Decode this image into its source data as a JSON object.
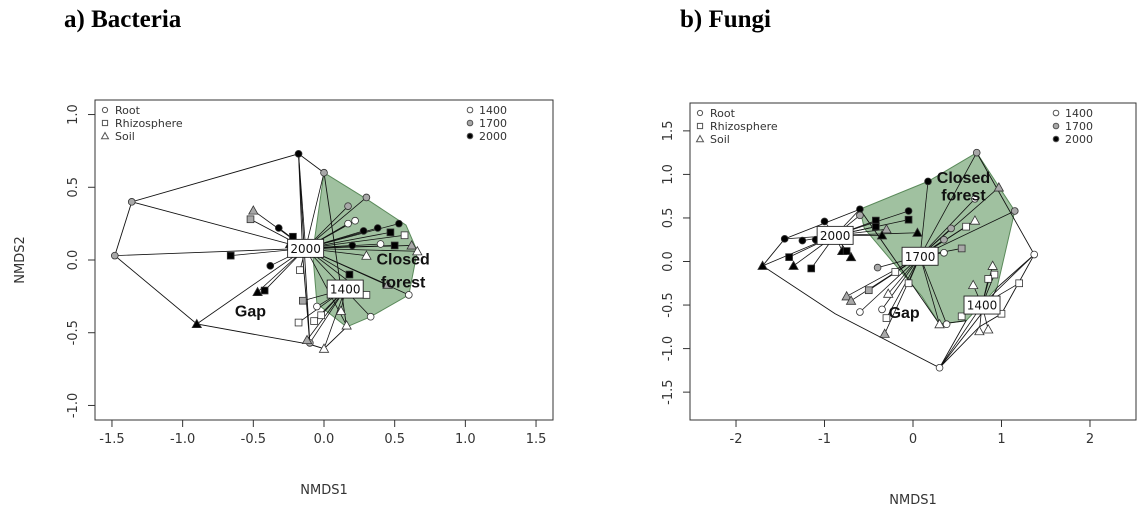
{
  "panels": {
    "a_title": "a)   Bacteria",
    "b_title": "b) Fungi"
  },
  "legend": {
    "shape_entries": [
      "Root",
      "Rhizosphere",
      "Soil"
    ],
    "elevation_entries": [
      "1400",
      "1700",
      "2000"
    ]
  },
  "colors": {
    "hull_fill": "#8fb68f",
    "hull_stroke": "#5a8a5a",
    "elev_1400": "#ffffff",
    "elev_1700": "#a8a8a8",
    "elev_2000": "#000000"
  },
  "chart_data": [
    {
      "type": "scatter",
      "title": "Bacteria",
      "xlabel": "NMDS1",
      "ylabel": "NMDS2",
      "xlim": [
        -1.5,
        1.5
      ],
      "ylim": [
        -1.0,
        1.0
      ],
      "xticks": [
        "-1.5",
        "-1.0",
        "-0.5",
        "0.0",
        "0.5",
        "1.0",
        "1.5"
      ],
      "yticks": [
        "-1.0",
        "-0.5",
        "0.0",
        "0.5",
        "1.0"
      ],
      "centroids": [
        {
          "label": "2000",
          "x": -0.13,
          "y": 0.08
        },
        {
          "label": "1400",
          "x": 0.15,
          "y": -0.2
        }
      ],
      "region_labels": [
        {
          "text": "Closed",
          "x": 0.56,
          "y": -0.03
        },
        {
          "text": "forest",
          "x": 0.56,
          "y": -0.19
        },
        {
          "text": "Gap",
          "x": -0.52,
          "y": -0.39
        }
      ],
      "hull": [
        [
          0.0,
          0.6
        ],
        [
          0.3,
          0.42
        ],
        [
          0.58,
          0.24
        ],
        [
          0.66,
          0.06
        ],
        [
          0.6,
          -0.24
        ],
        [
          0.33,
          -0.39
        ],
        [
          0.16,
          -0.46
        ],
        [
          -0.05,
          -0.3
        ],
        [
          -0.08,
          0.05
        ]
      ],
      "gap_polygons": [
        [
          [
            -0.18,
            0.73
          ],
          [
            -1.36,
            0.4
          ],
          [
            -1.48,
            0.03
          ],
          [
            -0.9,
            -0.44
          ],
          [
            -0.1,
            -0.58
          ],
          [
            -0.15,
            0.02
          ],
          [
            -0.18,
            0.73
          ]
        ],
        [
          [
            0.0,
            0.6
          ],
          [
            -0.18,
            0.73
          ],
          [
            -0.1,
            -0.58
          ],
          [
            0.0,
            -0.61
          ],
          [
            0.16,
            -0.46
          ],
          [
            0.0,
            0.6
          ]
        ]
      ],
      "points": [
        {
          "x": 0.0,
          "y": 0.6,
          "shape": "circle",
          "elev": "1700",
          "c": 0
        },
        {
          "x": 0.3,
          "y": 0.43,
          "shape": "circle",
          "elev": "1700",
          "c": 0
        },
        {
          "x": 0.17,
          "y": 0.37,
          "shape": "circle",
          "elev": "1700",
          "c": 0
        },
        {
          "x": 0.22,
          "y": 0.27,
          "shape": "circle",
          "elev": "1400",
          "c": 0
        },
        {
          "x": 0.17,
          "y": 0.25,
          "shape": "circle",
          "elev": "1400",
          "c": 0
        },
        {
          "x": 0.38,
          "y": 0.22,
          "shape": "circle",
          "elev": "2000",
          "c": 0
        },
        {
          "x": 0.53,
          "y": 0.25,
          "shape": "circle",
          "elev": "2000",
          "c": 0
        },
        {
          "x": 0.47,
          "y": 0.19,
          "shape": "square",
          "elev": "2000",
          "c": 0
        },
        {
          "x": 0.28,
          "y": 0.2,
          "shape": "circle",
          "elev": "2000",
          "c": 0
        },
        {
          "x": 0.4,
          "y": 0.11,
          "shape": "circle",
          "elev": "1400",
          "c": 0
        },
        {
          "x": 0.57,
          "y": 0.17,
          "shape": "square",
          "elev": "1400",
          "c": 0
        },
        {
          "x": 0.62,
          "y": 0.1,
          "shape": "triangle",
          "elev": "1700",
          "c": 0
        },
        {
          "x": 0.66,
          "y": 0.06,
          "shape": "triangle",
          "elev": "1400",
          "c": 0
        },
        {
          "x": 0.5,
          "y": 0.1,
          "shape": "square",
          "elev": "2000",
          "c": 0
        },
        {
          "x": 0.2,
          "y": 0.1,
          "shape": "circle",
          "elev": "2000",
          "c": 0
        },
        {
          "x": 0.3,
          "y": 0.03,
          "shape": "triangle",
          "elev": "1400",
          "c": 0
        },
        {
          "x": 0.18,
          "y": -0.1,
          "shape": "square",
          "elev": "2000",
          "c": 0
        },
        {
          "x": 0.3,
          "y": -0.24,
          "shape": "square",
          "elev": "1400",
          "c": 0
        },
        {
          "x": 0.6,
          "y": -0.24,
          "shape": "circle",
          "elev": "1400",
          "c": 0
        },
        {
          "x": 0.45,
          "y": -0.17,
          "shape": "triangle",
          "elev": "1700",
          "c": 0
        },
        {
          "x": 0.33,
          "y": -0.39,
          "shape": "circle",
          "elev": "1400",
          "c": 0
        },
        {
          "x": 0.16,
          "y": -0.45,
          "shape": "triangle",
          "elev": "1400",
          "c": 0
        },
        {
          "x": 0.12,
          "y": -0.35,
          "shape": "triangle",
          "elev": "1400",
          "c": 1
        },
        {
          "x": -0.02,
          "y": -0.38,
          "shape": "square",
          "elev": "1400",
          "c": 1
        },
        {
          "x": -0.05,
          "y": -0.32,
          "shape": "circle",
          "elev": "1400",
          "c": 1
        },
        {
          "x": 0.0,
          "y": -0.61,
          "shape": "triangle",
          "elev": "1400",
          "c": 1
        },
        {
          "x": -0.1,
          "y": -0.57,
          "shape": "circle",
          "elev": "1700",
          "c": 1
        },
        {
          "x": -0.12,
          "y": -0.55,
          "shape": "triangle",
          "elev": "1700",
          "c": 1
        },
        {
          "x": -0.07,
          "y": -0.42,
          "shape": "square",
          "elev": "1400",
          "c": 1
        },
        {
          "x": -0.18,
          "y": -0.43,
          "shape": "square",
          "elev": "1400",
          "c": 1
        },
        {
          "x": -0.15,
          "y": -0.28,
          "shape": "square",
          "elev": "1700",
          "c": 1
        },
        {
          "x": -0.18,
          "y": 0.73,
          "shape": "circle",
          "elev": "2000",
          "c": 0
        },
        {
          "x": -0.5,
          "y": 0.34,
          "shape": "triangle",
          "elev": "1700",
          "c": 0
        },
        {
          "x": -0.52,
          "y": 0.28,
          "shape": "square",
          "elev": "1700",
          "c": 0
        },
        {
          "x": -0.32,
          "y": 0.22,
          "shape": "circle",
          "elev": "2000",
          "c": 0
        },
        {
          "x": -0.22,
          "y": 0.16,
          "shape": "square",
          "elev": "2000",
          "c": 0
        },
        {
          "x": -0.24,
          "y": 0.11,
          "shape": "triangle",
          "elev": "2000",
          "c": 0
        },
        {
          "x": -1.36,
          "y": 0.4,
          "shape": "circle",
          "elev": "1700",
          "c": 0
        },
        {
          "x": -1.48,
          "y": 0.03,
          "shape": "circle",
          "elev": "1700",
          "c": 0
        },
        {
          "x": -0.66,
          "y": 0.03,
          "shape": "square",
          "elev": "2000",
          "c": 0
        },
        {
          "x": -0.38,
          "y": -0.04,
          "shape": "circle",
          "elev": "2000",
          "c": 0
        },
        {
          "x": -0.17,
          "y": -0.07,
          "shape": "square",
          "elev": "1400",
          "c": 0
        },
        {
          "x": -0.9,
          "y": -0.44,
          "shape": "triangle",
          "elev": "2000",
          "c": 0
        },
        {
          "x": -0.47,
          "y": -0.22,
          "shape": "triangle",
          "elev": "2000",
          "c": 0
        },
        {
          "x": -0.42,
          "y": -0.21,
          "shape": "square",
          "elev": "2000",
          "c": 0
        }
      ]
    },
    {
      "type": "scatter",
      "title": "Fungi",
      "xlabel": "NMDS1",
      "ylabel": "",
      "xlim": [
        -2.5,
        2.5
      ],
      "ylim": [
        -1.75,
        1.75
      ],
      "xticks": [
        "-2",
        "-1",
        "0",
        "1",
        "2"
      ],
      "yticks": [
        "-1.5",
        "-1.0",
        "-0.5",
        "0.0",
        "0.5",
        "1.0",
        "1.5"
      ],
      "centroids": [
        {
          "label": "2000",
          "x": -0.88,
          "y": 0.3
        },
        {
          "label": "1700",
          "x": 0.08,
          "y": 0.06
        },
        {
          "label": "1400",
          "x": 0.78,
          "y": -0.5
        }
      ],
      "region_labels": [
        {
          "text": "Closed",
          "x": 0.57,
          "y": 0.9
        },
        {
          "text": "forest",
          "x": 0.57,
          "y": 0.7
        },
        {
          "text": "Gap",
          "x": -0.1,
          "y": -0.65
        }
      ],
      "hull": [
        [
          -0.6,
          0.6
        ],
        [
          0.17,
          0.92
        ],
        [
          0.72,
          1.25
        ],
        [
          1.15,
          0.58
        ],
        [
          0.95,
          -0.3
        ],
        [
          0.6,
          -0.68
        ],
        [
          0.3,
          -0.72
        ],
        [
          0.1,
          -0.4
        ],
        [
          -0.55,
          0.38
        ]
      ],
      "gap_polygons": [
        [
          [
            -0.6,
            0.6
          ],
          [
            -1.45,
            0.26
          ],
          [
            -1.7,
            -0.05
          ],
          [
            -0.88,
            -0.6
          ],
          [
            0.3,
            -1.22
          ],
          [
            0.6,
            -0.68
          ],
          [
            0.3,
            -0.72
          ],
          [
            -0.6,
            0.6
          ]
        ],
        [
          [
            0.72,
            1.25
          ],
          [
            1.37,
            0.08
          ],
          [
            0.95,
            -0.3
          ],
          [
            0.85,
            -0.5
          ],
          [
            0.3,
            -1.22
          ],
          [
            0.75,
            -0.75
          ],
          [
            1.0,
            -0.6
          ],
          [
            1.37,
            0.08
          ]
        ]
      ],
      "points": [
        {
          "x": 0.72,
          "y": 1.25,
          "shape": "circle",
          "elev": "1700",
          "c": 1
        },
        {
          "x": 0.97,
          "y": 0.85,
          "shape": "triangle",
          "elev": "1700",
          "c": 1
        },
        {
          "x": 0.17,
          "y": 0.92,
          "shape": "circle",
          "elev": "2000",
          "c": 1
        },
        {
          "x": 0.7,
          "y": 0.72,
          "shape": "circle",
          "elev": "1400",
          "c": 1
        },
        {
          "x": 1.15,
          "y": 0.58,
          "shape": "circle",
          "elev": "1700",
          "c": 1
        },
        {
          "x": 0.7,
          "y": 0.47,
          "shape": "triangle",
          "elev": "1400",
          "c": 1
        },
        {
          "x": 0.6,
          "y": 0.4,
          "shape": "square",
          "elev": "1400",
          "c": 1
        },
        {
          "x": 0.43,
          "y": 0.38,
          "shape": "circle",
          "elev": "1700",
          "c": 1
        },
        {
          "x": 0.35,
          "y": 0.25,
          "shape": "circle",
          "elev": "1700",
          "c": 1
        },
        {
          "x": 0.55,
          "y": 0.15,
          "shape": "square",
          "elev": "1700",
          "c": 1
        },
        {
          "x": -0.05,
          "y": 0.58,
          "shape": "circle",
          "elev": "2000",
          "c": 0
        },
        {
          "x": -0.05,
          "y": 0.48,
          "shape": "square",
          "elev": "2000",
          "c": 0
        },
        {
          "x": -0.42,
          "y": 0.47,
          "shape": "square",
          "elev": "2000",
          "c": 0
        },
        {
          "x": -0.42,
          "y": 0.4,
          "shape": "square",
          "elev": "2000",
          "c": 0
        },
        {
          "x": -0.6,
          "y": 0.6,
          "shape": "circle",
          "elev": "2000",
          "c": 0
        },
        {
          "x": -0.6,
          "y": 0.53,
          "shape": "circle",
          "elev": "1700",
          "c": 0
        },
        {
          "x": -0.3,
          "y": 0.37,
          "shape": "triangle",
          "elev": "1700",
          "c": 0
        },
        {
          "x": -0.35,
          "y": 0.3,
          "shape": "triangle",
          "elev": "2000",
          "c": 0
        },
        {
          "x": 0.05,
          "y": 0.33,
          "shape": "triangle",
          "elev": "2000",
          "c": 0
        },
        {
          "x": -1.0,
          "y": 0.46,
          "shape": "circle",
          "elev": "2000",
          "c": 0
        },
        {
          "x": -1.45,
          "y": 0.26,
          "shape": "circle",
          "elev": "2000",
          "c": 0
        },
        {
          "x": -1.25,
          "y": 0.24,
          "shape": "circle",
          "elev": "2000",
          "c": 0
        },
        {
          "x": -1.1,
          "y": 0.25,
          "shape": "circle",
          "elev": "2000",
          "c": 0
        },
        {
          "x": -1.7,
          "y": -0.05,
          "shape": "triangle",
          "elev": "2000",
          "c": 0
        },
        {
          "x": -1.35,
          "y": -0.05,
          "shape": "triangle",
          "elev": "2000",
          "c": 0
        },
        {
          "x": -1.4,
          "y": 0.05,
          "shape": "square",
          "elev": "2000",
          "c": 0
        },
        {
          "x": -1.15,
          "y": -0.08,
          "shape": "square",
          "elev": "2000",
          "c": 0
        },
        {
          "x": -0.8,
          "y": 0.12,
          "shape": "triangle",
          "elev": "2000",
          "c": 0
        },
        {
          "x": -0.75,
          "y": 0.12,
          "shape": "square",
          "elev": "2000",
          "c": 0
        },
        {
          "x": -0.7,
          "y": 0.05,
          "shape": "triangle",
          "elev": "2000",
          "c": 0
        },
        {
          "x": -0.4,
          "y": -0.07,
          "shape": "circle",
          "elev": "1700",
          "c": 1
        },
        {
          "x": -0.2,
          "y": -0.12,
          "shape": "square",
          "elev": "1400",
          "c": 1
        },
        {
          "x": -0.05,
          "y": -0.25,
          "shape": "square",
          "elev": "1400",
          "c": 1
        },
        {
          "x": 0.35,
          "y": 0.1,
          "shape": "circle",
          "elev": "1400",
          "c": 1
        },
        {
          "x": -0.75,
          "y": -0.4,
          "shape": "triangle",
          "elev": "1700",
          "c": 1
        },
        {
          "x": -0.5,
          "y": -0.33,
          "shape": "square",
          "elev": "1700",
          "c": 1
        },
        {
          "x": -0.28,
          "y": -0.37,
          "shape": "triangle",
          "elev": "1400",
          "c": 1
        },
        {
          "x": -0.35,
          "y": -0.55,
          "shape": "circle",
          "elev": "1400",
          "c": 1
        },
        {
          "x": -0.6,
          "y": -0.58,
          "shape": "circle",
          "elev": "1400",
          "c": 1
        },
        {
          "x": -0.3,
          "y": -0.65,
          "shape": "square",
          "elev": "1400",
          "c": 1
        },
        {
          "x": -0.32,
          "y": -0.83,
          "shape": "triangle",
          "elev": "1700",
          "c": 1
        },
        {
          "x": -0.7,
          "y": -0.45,
          "shape": "triangle",
          "elev": "1700",
          "c": 1
        },
        {
          "x": 0.3,
          "y": -0.72,
          "shape": "triangle",
          "elev": "1400",
          "c": 1
        },
        {
          "x": 0.38,
          "y": -0.72,
          "shape": "circle",
          "elev": "1400",
          "c": 1
        },
        {
          "x": 0.3,
          "y": -1.22,
          "shape": "circle",
          "elev": "1400",
          "c": 2
        },
        {
          "x": 0.68,
          "y": -0.27,
          "shape": "triangle",
          "elev": "1400",
          "c": 2
        },
        {
          "x": 0.9,
          "y": -0.05,
          "shape": "triangle",
          "elev": "1400",
          "c": 2
        },
        {
          "x": 0.92,
          "y": -0.15,
          "shape": "square",
          "elev": "1400",
          "c": 2
        },
        {
          "x": 0.85,
          "y": -0.2,
          "shape": "square",
          "elev": "1400",
          "c": 2
        },
        {
          "x": 1.2,
          "y": -0.25,
          "shape": "square",
          "elev": "1400",
          "c": 2
        },
        {
          "x": 1.37,
          "y": 0.08,
          "shape": "circle",
          "elev": "1400",
          "c": 2
        },
        {
          "x": 1.0,
          "y": -0.6,
          "shape": "square",
          "elev": "1400",
          "c": 2
        },
        {
          "x": 0.85,
          "y": -0.78,
          "shape": "triangle",
          "elev": "1400",
          "c": 2
        },
        {
          "x": 0.75,
          "y": -0.8,
          "shape": "triangle",
          "elev": "1400",
          "c": 2
        },
        {
          "x": 0.55,
          "y": -0.63,
          "shape": "square",
          "elev": "1400",
          "c": 2
        },
        {
          "x": 0.85,
          "y": -0.5,
          "shape": "circle",
          "elev": "1400",
          "c": 2
        }
      ]
    }
  ]
}
